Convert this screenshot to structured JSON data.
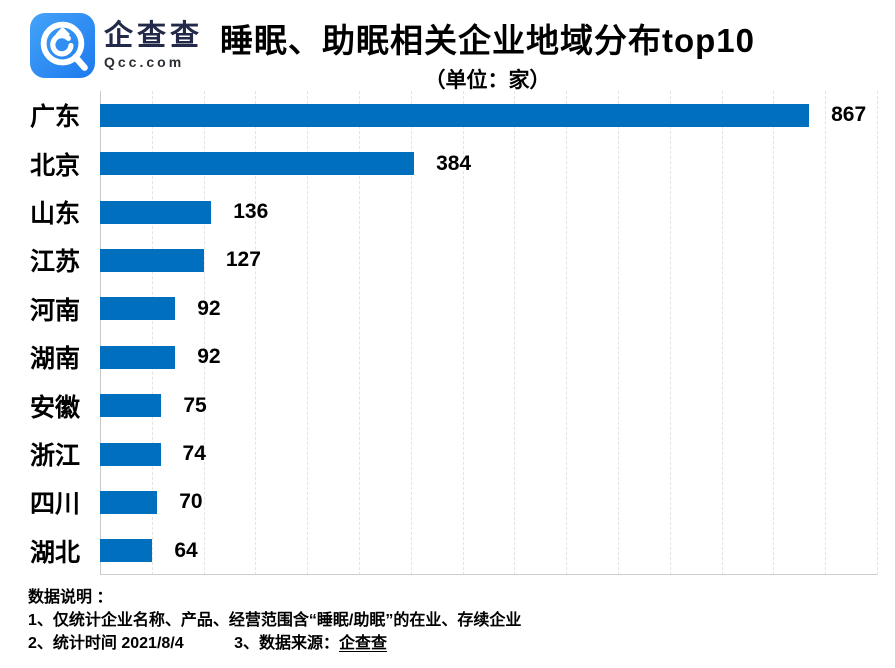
{
  "header": {
    "brand_cn": "企查查",
    "brand_en": "Qcc.com",
    "logo_color": "#2b8bf3",
    "title": "睡眠、助眠相关企业地域分布top10",
    "unit_label": "（单位：家）"
  },
  "chart_data": {
    "type": "bar",
    "orientation": "horizontal",
    "title": "睡眠、助眠相关企业地域分布top10",
    "unit": "家",
    "categories": [
      "广东",
      "北京",
      "山东",
      "江苏",
      "河南",
      "湖南",
      "安徽",
      "浙江",
      "四川",
      "湖北"
    ],
    "values": [
      867,
      384,
      136,
      127,
      92,
      92,
      75,
      74,
      70,
      64
    ],
    "xlim": [
      0,
      950
    ],
    "bar_color": "#0070be",
    "grid": {
      "vertical_dashed": true,
      "line_count": 16
    },
    "value_label_position": "outside-end",
    "legend": "none"
  },
  "footer": {
    "heading": "数据说明 ：",
    "note1": "1、仅统计企业名称、产品、经营范围含“睡眠/助眠”的在业、存续企业",
    "note2": "2、统计时间 2021/8/4",
    "note3_prefix": "3、数据来源：",
    "note3_source": "企查查"
  }
}
